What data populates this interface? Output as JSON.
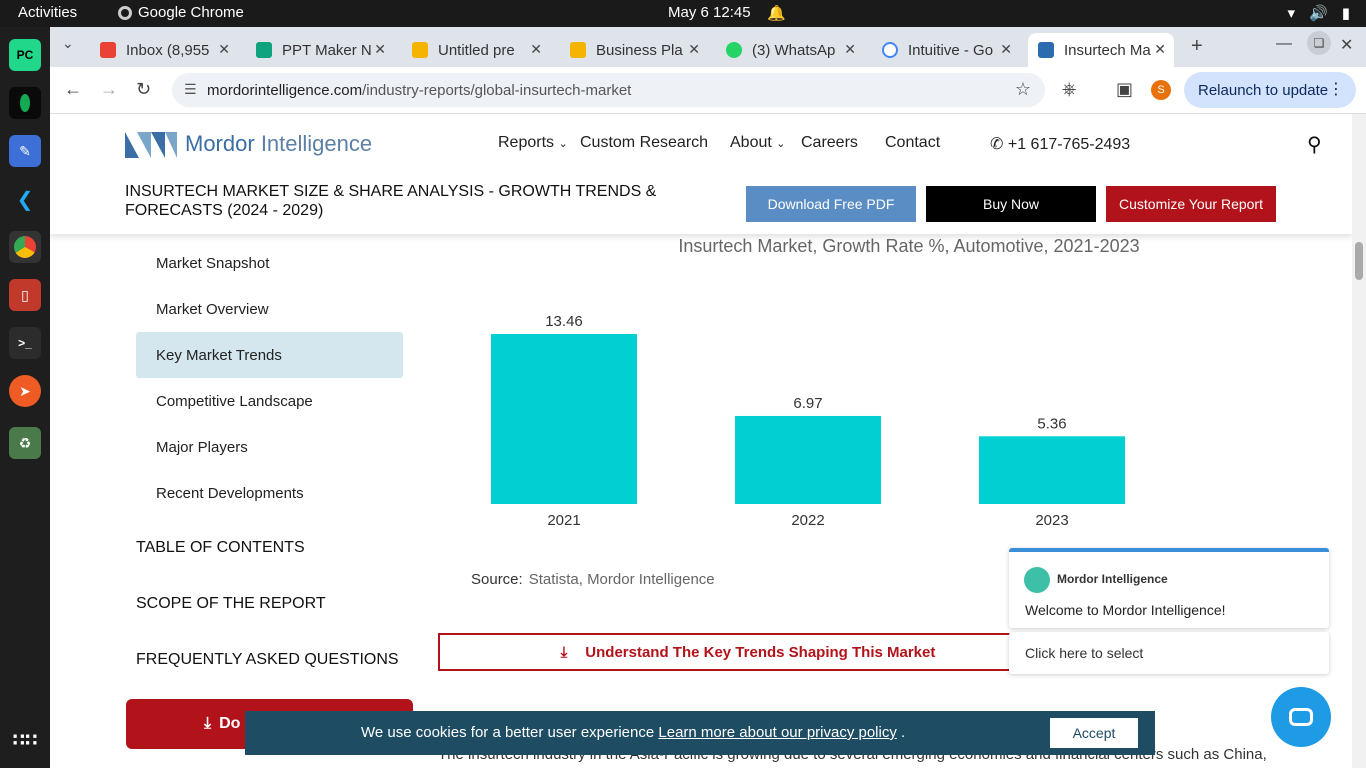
{
  "system": {
    "activities": "Activities",
    "app_name": "Google Chrome",
    "clock": "May 6  12:45"
  },
  "tabs": [
    {
      "label": "Inbox (8,955",
      "color": "#ea4335"
    },
    {
      "label": "PPT Maker N",
      "color": "#10a37f"
    },
    {
      "label": "Untitled pre",
      "color": "#f4b400"
    },
    {
      "label": "Business Pla",
      "color": "#f4b400"
    },
    {
      "label": "(3) WhatsAp",
      "color": "#25d366"
    },
    {
      "label": "Intuitive - Go",
      "color": "#4285f4"
    },
    {
      "label": "Insurtech Ma",
      "color": "#2b6cb0"
    }
  ],
  "toolbar": {
    "url_host": "mordorintelligence.com",
    "url_path": "/industry-reports/global-insurtech-market",
    "profile_initial": "S",
    "relaunch": "Relaunch to update"
  },
  "site": {
    "logo_a": "Mordor",
    "logo_b": "Intelligence",
    "nav": {
      "reports": "Reports",
      "custom": "Custom Research",
      "about": "About",
      "careers": "Careers",
      "contact": "Contact",
      "phone": "+1 617-765-2493"
    },
    "title": "INSURTECH MARKET SIZE & SHARE ANALYSIS - GROWTH TRENDS & FORECASTS (2024 - 2029)",
    "btn_pdf": "Download Free PDF",
    "btn_buy": "Buy Now",
    "btn_custom": "Customize Your Report"
  },
  "sidebar": {
    "items": [
      {
        "label": "Market Snapshot"
      },
      {
        "label": "Market Overview"
      },
      {
        "label": "Key Market Trends"
      },
      {
        "label": "Competitive Landscape"
      },
      {
        "label": "Major Players"
      },
      {
        "label": "Recent Developments"
      }
    ],
    "toc": "TABLE OF CONTENTS",
    "scope": "SCOPE OF THE REPORT",
    "faq": "FREQUENTLY ASKED QUESTIONS",
    "download": "Do"
  },
  "chart_data": {
    "type": "bar",
    "title": "Insurtech Market, Growth Rate %, Automotive, 2021-2023",
    "categories": [
      "2021",
      "2022",
      "2023"
    ],
    "values": [
      13.46,
      6.97,
      5.36
    ],
    "labels": [
      "13.46",
      "6.97",
      "5.36"
    ],
    "color": "#00d0d2",
    "ylim": [
      0,
      13.46
    ],
    "grid": false
  },
  "source": {
    "label": "Source:",
    "value": "Statista, Mordor Intelligence"
  },
  "trend_button": "Understand The Key Trends Shaping This Market",
  "body_text": "The insurtech industry in the Asia-Pacific is growing due to several emerging economies and financial centers such as China,",
  "chat": {
    "brand": "Mordor Intelligence",
    "welcome": "Welcome to Mordor Intelligence!",
    "select": "Click here to select"
  },
  "cookie": {
    "text": "We use cookies for a better user experience ",
    "link": "Learn more about our privacy policy",
    "dot": " .",
    "accept": "Accept"
  }
}
